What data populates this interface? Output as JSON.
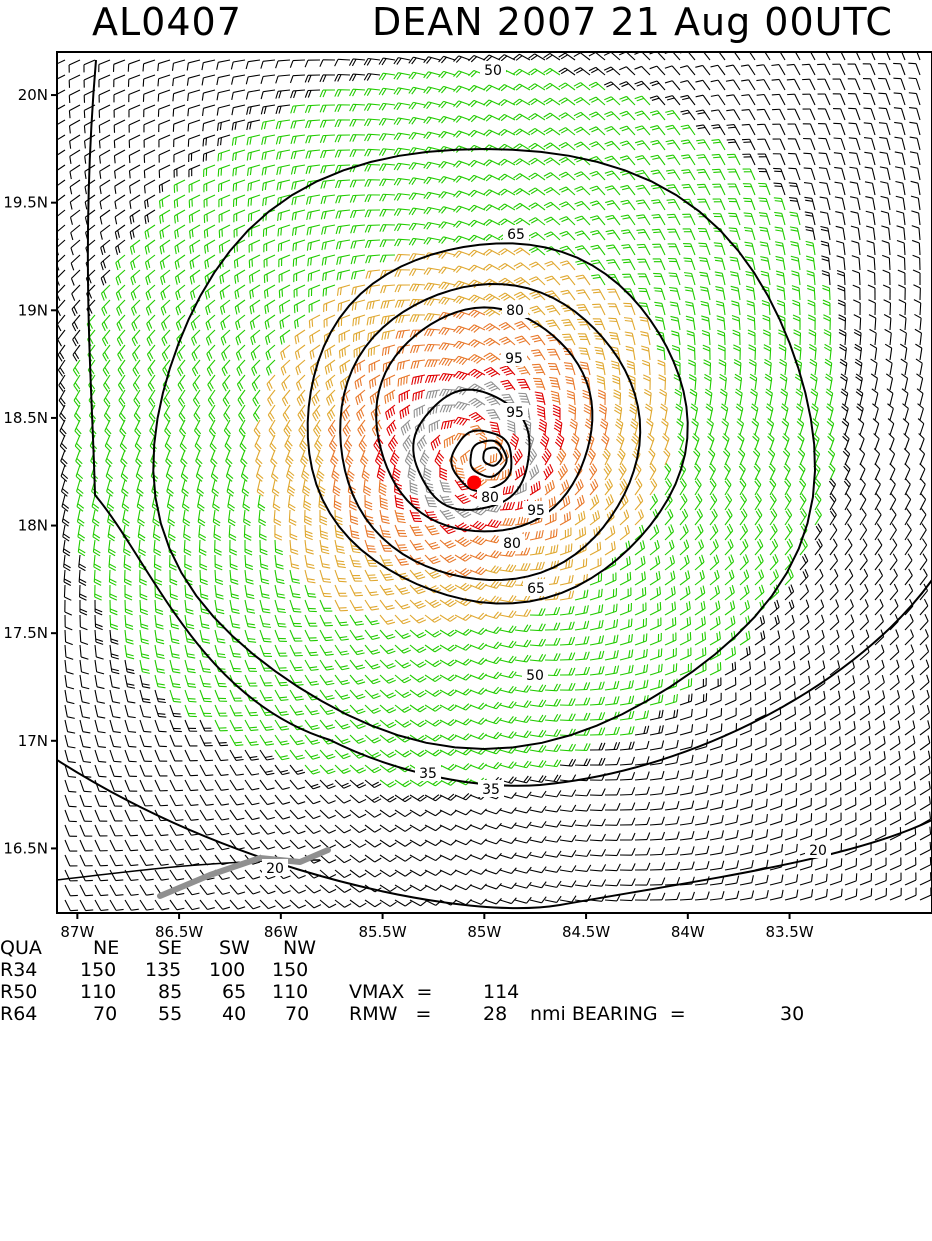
{
  "title": {
    "storm_id": "AL0407",
    "headline": "DEAN 2007 21 Aug 00UTC"
  },
  "axes": {
    "lat_labels": [
      "20N",
      "19.5N",
      "19N",
      "18.5N",
      "18N",
      "17.5N",
      "17N",
      "16.5N"
    ],
    "lon_labels": [
      "87W",
      "86.5W",
      "86W",
      "85.5W",
      "85W",
      "84.5W",
      "84W",
      "83.5W"
    ]
  },
  "map": {
    "lat_range": [
      16.2,
      20.2
    ],
    "lon_range": [
      -87.1,
      -82.8
    ],
    "center": {
      "lat": 18.2,
      "lon": -85.05
    },
    "contour_labels": [
      "50",
      "65",
      "80",
      "95",
      "95",
      "80",
      "95",
      "80",
      "65",
      "50",
      "35",
      "35",
      "20",
      "20"
    ],
    "colors": {
      "below_34": "#000000",
      "34_50": "#22cc00",
      "50_64": "#e0a830",
      "64_83": "#e8782a",
      "83_96": "#e00000",
      "96_plus": "#909090",
      "center_marker": "#ff0000",
      "track": "#909090",
      "contour": "#000000"
    }
  },
  "table": {
    "header": [
      "QUA",
      "NE",
      "SE",
      "SW",
      "NW"
    ],
    "r34": [
      "R34",
      "150",
      "135",
      "100",
      "150"
    ],
    "r50": [
      "R50",
      "110",
      "85",
      "65",
      "110"
    ],
    "r64": [
      "R64",
      "70",
      "55",
      "40",
      "70"
    ],
    "vmax_label": "VMAX  =",
    "vmax_value": "114",
    "rmw_label": "RMW   =",
    "rmw_value": "28",
    "rmw_unit": "nmi BEARING  =",
    "bearing_value": "30"
  }
}
